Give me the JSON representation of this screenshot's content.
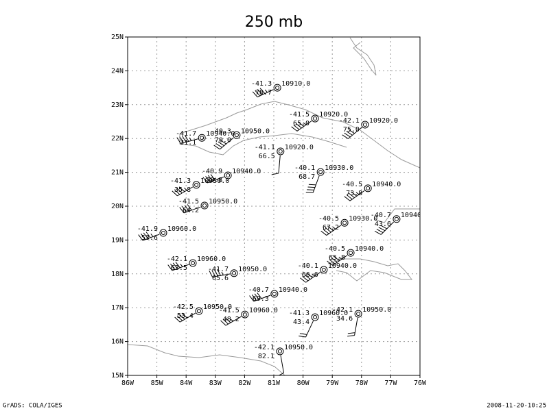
{
  "map": {
    "title": "250 mb",
    "footer_left": "GrADS: COLA/IGES",
    "footer_right": "2008-11-20-10:25",
    "lon_range": [
      -86,
      -76
    ],
    "lat_range": [
      15,
      25
    ],
    "xticks": [
      {
        "value": -86,
        "label": "86W"
      },
      {
        "value": -85,
        "label": "85W"
      },
      {
        "value": -84,
        "label": "84W"
      },
      {
        "value": -83,
        "label": "83W"
      },
      {
        "value": -82,
        "label": "82W"
      },
      {
        "value": -81,
        "label": "81W"
      },
      {
        "value": -80,
        "label": "80W"
      },
      {
        "value": -79,
        "label": "79W"
      },
      {
        "value": -78,
        "label": "78W"
      },
      {
        "value": -77,
        "label": "77W"
      },
      {
        "value": -76,
        "label": "76W"
      }
    ],
    "yticks": [
      {
        "value": 15,
        "label": "15N"
      },
      {
        "value": 16,
        "label": "16N"
      },
      {
        "value": 17,
        "label": "17N"
      },
      {
        "value": 18,
        "label": "18N"
      },
      {
        "value": 19,
        "label": "19N"
      },
      {
        "value": 20,
        "label": "20N"
      },
      {
        "value": 21,
        "label": "21N"
      },
      {
        "value": 22,
        "label": "22N"
      },
      {
        "value": 23,
        "label": "23N"
      },
      {
        "value": 24,
        "label": "24N"
      },
      {
        "value": 25,
        "label": "25N"
      }
    ],
    "grid": true,
    "stations": [
      {
        "lon": -80.88,
        "lat": 23.5,
        "temp": "-41.3",
        "value": "78.7",
        "height": "10910.0",
        "wind_dir": 245,
        "wind_speed": 45
      },
      {
        "lon": -79.59,
        "lat": 22.59,
        "temp": "-41.5",
        "value": "65.0",
        "height": "10920.0",
        "wind_dir": 235,
        "wind_speed": 45
      },
      {
        "lon": -77.88,
        "lat": 22.41,
        "temp": "-42.1",
        "value": "75.0",
        "height": "10920.0",
        "wind_dir": 230,
        "wind_speed": 40
      },
      {
        "lon": -83.46,
        "lat": 22.02,
        "temp": "-41.7",
        "value": "31.1",
        "height": "10940.0",
        "wind_dir": 255,
        "wind_speed": 45
      },
      {
        "lon": -82.27,
        "lat": 22.1,
        "temp": "-40.3",
        "value": "70.0",
        "height": "10950.0",
        "wind_dir": 230,
        "wind_speed": 40
      },
      {
        "lon": -80.77,
        "lat": 21.62,
        "temp": "-41.1",
        "value": "66.5",
        "height": "10920.0",
        "wind_dir": 185,
        "wind_speed": 10
      },
      {
        "lon": -82.57,
        "lat": 20.91,
        "temp": "-40.9",
        "value": "78.8",
        "height": "10940.0",
        "wind_dir": 250,
        "wind_speed": 40
      },
      {
        "lon": -79.4,
        "lat": 21.01,
        "temp": "-40.1",
        "value": "68.7",
        "height": "10930.0",
        "wind_dir": 200,
        "wind_speed": 40
      },
      {
        "lon": -83.65,
        "lat": 20.63,
        "temp": "-41.3",
        "value": "35.8",
        "height": "10950.0",
        "wind_dir": 240,
        "wind_speed": 45
      },
      {
        "lon": -77.78,
        "lat": 20.53,
        "temp": "-40.5",
        "value": "73.8",
        "height": "10940.0",
        "wind_dir": 235,
        "wind_speed": 45
      },
      {
        "lon": -83.37,
        "lat": 20.02,
        "temp": "-41.5",
        "value": "64.2",
        "height": "10950.0",
        "wind_dir": 250,
        "wind_speed": 40
      },
      {
        "lon": -78.58,
        "lat": 19.51,
        "temp": "-40.5",
        "value": "67.2",
        "height": "10930.0",
        "wind_dir": 235,
        "wind_speed": 45
      },
      {
        "lon": -76.8,
        "lat": 19.62,
        "temp": "-40.7",
        "value": "43.6",
        "height": "10940.0",
        "wind_dir": 225,
        "wind_speed": 40
      },
      {
        "lon": -84.78,
        "lat": 19.21,
        "temp": "-41.9",
        "value": "53.6",
        "height": "10960.0",
        "wind_dir": 250,
        "wind_speed": 45
      },
      {
        "lon": -78.37,
        "lat": 18.62,
        "temp": "-40.5",
        "value": "65.8",
        "height": "10940.0",
        "wind_dir": 235,
        "wind_speed": 45
      },
      {
        "lon": -83.77,
        "lat": 18.32,
        "temp": "-42.1",
        "value": "63.5",
        "height": "10960.0",
        "wind_dir": 250,
        "wind_speed": 45
      },
      {
        "lon": -82.36,
        "lat": 18.02,
        "temp": "-41.7",
        "value": "65.6",
        "height": "10950.0",
        "wind_dir": 260,
        "wind_speed": 45
      },
      {
        "lon": -79.29,
        "lat": 18.12,
        "temp": "-40.1",
        "value": "66.6",
        "height": "10940.0",
        "wind_dir": 235,
        "wind_speed": 45
      },
      {
        "lon": -80.98,
        "lat": 17.41,
        "temp": "-40.7",
        "value": "69.3",
        "height": "10940.0",
        "wind_dir": 250,
        "wind_speed": 40
      },
      {
        "lon": -83.56,
        "lat": 16.9,
        "temp": "-42.5",
        "value": "53.4",
        "height": "10950.0",
        "wind_dir": 240,
        "wind_speed": 40
      },
      {
        "lon": -81.99,
        "lat": 16.8,
        "temp": "-41.5",
        "value": "48.2",
        "height": "10960.0",
        "wind_dir": 240,
        "wind_speed": 35
      },
      {
        "lon": -79.59,
        "lat": 16.72,
        "temp": "-41.3",
        "value": "43.4",
        "height": "10960.0",
        "wind_dir": 205,
        "wind_speed": 20
      },
      {
        "lon": -78.11,
        "lat": 16.82,
        "temp": "-42.1",
        "value": "34.6",
        "height": "10950.0",
        "wind_dir": 190,
        "wind_speed": 20
      },
      {
        "lon": -80.79,
        "lat": 15.71,
        "temp": "-42.1",
        "value": "82.1",
        "height": "10950.0",
        "wind_dir": 170,
        "wind_speed": 10
      }
    ]
  }
}
